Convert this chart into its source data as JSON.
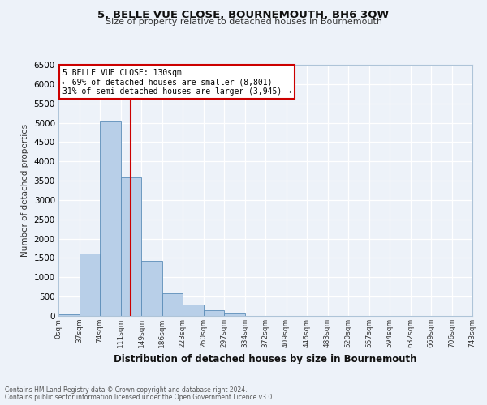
{
  "title": "5, BELLE VUE CLOSE, BOURNEMOUTH, BH6 3QW",
  "subtitle": "Size of property relative to detached houses in Bournemouth",
  "xlabel": "Distribution of detached houses by size in Bournemouth",
  "ylabel": "Number of detached properties",
  "bin_labels": [
    "0sqm",
    "37sqm",
    "74sqm",
    "111sqm",
    "149sqm",
    "186sqm",
    "223sqm",
    "260sqm",
    "297sqm",
    "334sqm",
    "372sqm",
    "409sqm",
    "446sqm",
    "483sqm",
    "520sqm",
    "557sqm",
    "594sqm",
    "632sqm",
    "669sqm",
    "706sqm",
    "743sqm"
  ],
  "bar_values": [
    50,
    1620,
    5060,
    3580,
    1430,
    590,
    300,
    140,
    60,
    0,
    0,
    0,
    0,
    0,
    0,
    0,
    0,
    0,
    0,
    0
  ],
  "bar_color": "#b8cfe8",
  "bar_edge_color": "#5b8db8",
  "ylim": [
    0,
    6500
  ],
  "yticks": [
    0,
    500,
    1000,
    1500,
    2000,
    2500,
    3000,
    3500,
    4000,
    4500,
    5000,
    5500,
    6000,
    6500
  ],
  "vline_color": "#cc0000",
  "annotation_title": "5 BELLE VUE CLOSE: 130sqm",
  "annotation_line1": "← 69% of detached houses are smaller (8,801)",
  "annotation_line2": "31% of semi-detached houses are larger (3,945) →",
  "annotation_box_color": "#cc0000",
  "background_color": "#edf2f9",
  "grid_color": "#ffffff",
  "footnote1": "Contains HM Land Registry data © Crown copyright and database right 2024.",
  "footnote2": "Contains public sector information licensed under the Open Government Licence v3.0."
}
